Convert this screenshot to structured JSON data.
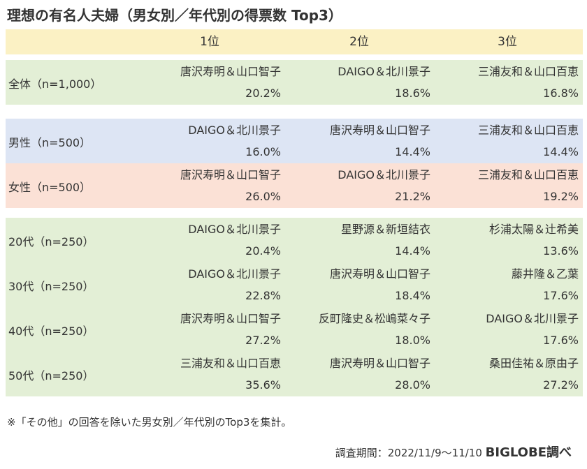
{
  "title": "理想の有名人夫婦（男女別／年代別の得票数 Top3）",
  "colors": {
    "header_bg": "#fbf1c4",
    "total_bg": "#e3efd6",
    "male_bg": "#dde5f4",
    "female_bg": "#fbe1d6",
    "age_bg": "#e3efd6"
  },
  "chart_data": {
    "type": "table",
    "columns": [
      "1位",
      "2位",
      "3位"
    ],
    "groups": [
      {
        "key": "total",
        "rows": [
          {
            "label": "全体（n=1,000）",
            "ranks": [
              {
                "name": "唐沢寿明＆山口智子",
                "pct": "20.2%"
              },
              {
                "name": "DAIGO＆北川景子",
                "pct": "18.6%"
              },
              {
                "name": "三浦友和＆山口百恵",
                "pct": "16.8%"
              }
            ]
          }
        ]
      },
      {
        "key": "male",
        "rows": [
          {
            "label": "男性（n=500）",
            "ranks": [
              {
                "name": "DAIGO＆北川景子",
                "pct": "16.0%"
              },
              {
                "name": "唐沢寿明＆山口智子",
                "pct": "14.4%"
              },
              {
                "name": "三浦友和＆山口百恵",
                "pct": "14.4%"
              }
            ]
          }
        ]
      },
      {
        "key": "female",
        "rows": [
          {
            "label": "女性（n=500）",
            "ranks": [
              {
                "name": "唐沢寿明＆山口智子",
                "pct": "26.0%"
              },
              {
                "name": "DAIGO＆北川景子",
                "pct": "21.2%"
              },
              {
                "name": "三浦友和＆山口百恵",
                "pct": "19.2%"
              }
            ]
          }
        ]
      },
      {
        "key": "age",
        "rows": [
          {
            "label": "20代（n=250）",
            "ranks": [
              {
                "name": "DAIGO＆北川景子",
                "pct": "20.4%"
              },
              {
                "name": "星野源＆新垣結衣",
                "pct": "14.4%"
              },
              {
                "name": "杉浦太陽＆辻希美",
                "pct": "13.6%"
              }
            ]
          },
          {
            "label": "30代（n=250）",
            "ranks": [
              {
                "name": "DAIGO＆北川景子",
                "pct": "22.8%"
              },
              {
                "name": "唐沢寿明＆山口智子",
                "pct": "18.4%"
              },
              {
                "name": "藤井隆＆乙葉",
                "pct": "17.6%"
              }
            ]
          },
          {
            "label": "40代（n=250）",
            "ranks": [
              {
                "name": "唐沢寿明＆山口智子",
                "pct": "27.2%"
              },
              {
                "name": "反町隆史＆松嶋菜々子",
                "pct": "18.0%"
              },
              {
                "name": "DAIGO＆北川景子",
                "pct": "17.6%"
              }
            ]
          },
          {
            "label": "50代（n=250）",
            "ranks": [
              {
                "name": "三浦友和＆山口百恵",
                "pct": "35.6%"
              },
              {
                "name": "唐沢寿明＆山口智子",
                "pct": "28.0%"
              },
              {
                "name": "桑田佳祐＆原由子",
                "pct": "27.2%"
              }
            ]
          }
        ]
      }
    ]
  },
  "footnote": "※「その他」の回答を除いた男女別／年代別のTop3を集計。",
  "credit": {
    "period": "調査期間：2022/11/9～11/10",
    "brand": "BIGLOBE調べ"
  }
}
